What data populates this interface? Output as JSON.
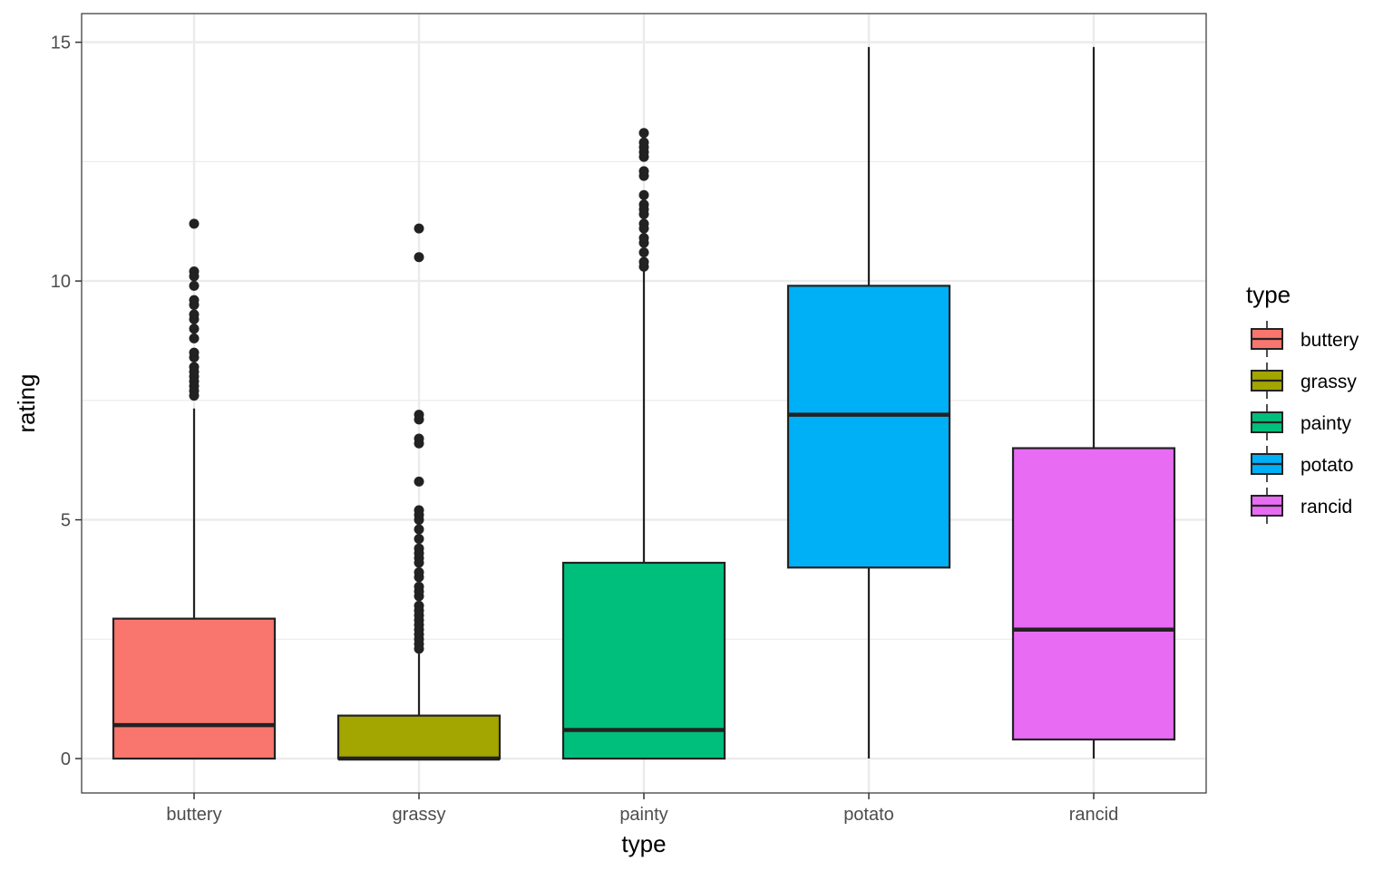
{
  "chart_data": {
    "type": "boxplot",
    "xlabel": "type",
    "ylabel": "rating",
    "ylim": [
      -0.72,
      15.6
    ],
    "y_ticks": [
      0,
      5,
      10,
      15
    ],
    "y_tick_labels": [
      "0",
      "5",
      "10",
      "15"
    ],
    "grid": true,
    "legend": {
      "title": "type",
      "position": "right",
      "entries": [
        "buttery",
        "grassy",
        "painty",
        "potato",
        "rancid"
      ]
    },
    "categories": [
      "buttery",
      "grassy",
      "painty",
      "potato",
      "rancid"
    ],
    "colors": [
      "#F8766D",
      "#A3A500",
      "#00BF7D",
      "#00B0F6",
      "#E76BF3"
    ],
    "boxes": [
      {
        "name": "buttery",
        "whisker_low": 0,
        "q1": 0,
        "median": 0.7,
        "q3": 2.93,
        "whisker_high": 7.33,
        "outliers": [
          7.6,
          7.7,
          7.8,
          7.9,
          8.0,
          8.1,
          8.2,
          8.4,
          8.5,
          8.8,
          9.0,
          9.2,
          9.3,
          9.5,
          9.6,
          9.9,
          10.1,
          10.2,
          11.2
        ]
      },
      {
        "name": "grassy",
        "whisker_low": 0,
        "q1": 0,
        "median": 0,
        "q3": 0.9,
        "whisker_high": 2.2,
        "outliers": [
          2.3,
          2.4,
          2.5,
          2.6,
          2.7,
          2.8,
          2.9,
          3.0,
          3.1,
          3.2,
          3.4,
          3.5,
          3.6,
          3.8,
          3.9,
          4.1,
          4.2,
          4.3,
          4.4,
          4.6,
          4.8,
          5.0,
          5.1,
          5.2,
          5.8,
          6.6,
          6.7,
          7.1,
          7.2,
          10.5,
          11.1
        ]
      },
      {
        "name": "painty",
        "whisker_low": 0,
        "q1": 0,
        "median": 0.6,
        "q3": 4.1,
        "whisker_high": 10.2,
        "outliers": [
          10.3,
          10.4,
          10.6,
          10.8,
          10.9,
          11.1,
          11.2,
          11.4,
          11.5,
          11.6,
          11.8,
          12.2,
          12.3,
          12.6,
          12.7,
          12.8,
          12.9,
          13.1
        ]
      },
      {
        "name": "potato",
        "whisker_low": 0,
        "q1": 4.0,
        "median": 7.2,
        "q3": 9.9,
        "whisker_high": 14.9,
        "outliers": []
      },
      {
        "name": "rancid",
        "whisker_low": 0,
        "q1": 0.4,
        "median": 2.7,
        "q3": 6.5,
        "whisker_high": 14.9,
        "outliers": []
      }
    ]
  }
}
